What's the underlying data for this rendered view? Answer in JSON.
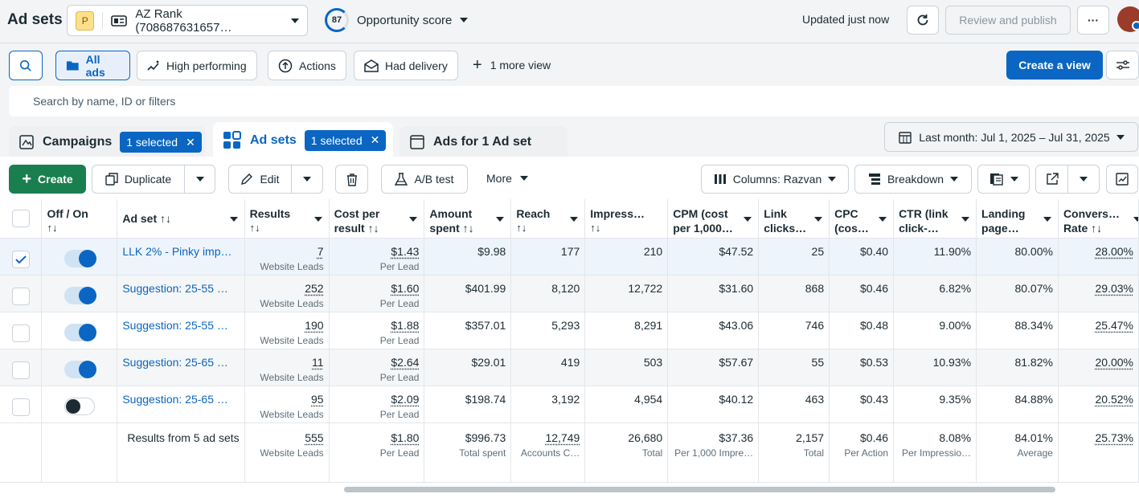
{
  "topbar": {
    "title": "Ad sets",
    "account_badge": "P",
    "account_name": "AZ Rank (708687631657…",
    "opportunity_value": "87",
    "opportunity_label": "Opportunity score",
    "updated": "Updated just now",
    "review_button": "Review and publish",
    "more_label": "···"
  },
  "views": {
    "items": [
      "All ads",
      "High performing",
      "Actions",
      "Had delivery"
    ],
    "more_view": "1 more view",
    "create_view": "Create a view"
  },
  "search": {
    "placeholder": "Search by name, ID or filters"
  },
  "tabs": {
    "campaigns": "Campaigns",
    "campaigns_badge": "1 selected",
    "adsets": "Ad sets",
    "adsets_badge": "1 selected",
    "ads": "Ads for 1 Ad set"
  },
  "daterange": "Last month: Jul 1, 2025 – Jul 31, 2025",
  "toolbar": {
    "create": "Create",
    "duplicate": "Duplicate",
    "edit": "Edit",
    "abtest": "A/B test",
    "more": "More",
    "columns": "Columns: Razvan",
    "breakdown": "Breakdown"
  },
  "table": {
    "headers": [
      {
        "l1": "Off / On",
        "l2": "↑↓"
      },
      {
        "l1": "Ad set ↑↓",
        "l2": ""
      },
      {
        "l1": "Results",
        "l2": "↑↓"
      },
      {
        "l1": "Cost per",
        "l2": "result ↑↓"
      },
      {
        "l1": "Amount",
        "l2": "spent ↑↓"
      },
      {
        "l1": "Reach",
        "l2": "↑↓"
      },
      {
        "l1": "Impress…",
        "l2": "↑↓"
      },
      {
        "l1": "CPM (cost",
        "l2": "per 1,000…"
      },
      {
        "l1": "Link",
        "l2": "clicks…"
      },
      {
        "l1": "CPC",
        "l2": "(cos…"
      },
      {
        "l1": "CTR (link",
        "l2": "click-…"
      },
      {
        "l1": "Landing",
        "l2": "page…"
      },
      {
        "l1": "Convers…",
        "l2": "Rate ↑↓"
      }
    ],
    "rows": [
      {
        "checked": true,
        "on": true,
        "name": "LLK 2% - Pinky imp…",
        "results": "7",
        "results_sub": "Website Leads",
        "cpr": "$1.43",
        "cpr_sub": "Per Lead",
        "spent": "$9.98",
        "reach": "177",
        "impr": "210",
        "cpm": "$47.52",
        "clicks": "25",
        "cpc": "$0.40",
        "ctr": "11.90%",
        "landing": "80.00%",
        "conv": "28.00%"
      },
      {
        "checked": false,
        "on": true,
        "name": "Suggestion: 25-55 …",
        "results": "252",
        "results_sub": "Website Leads",
        "cpr": "$1.60",
        "cpr_sub": "Per Lead",
        "spent": "$401.99",
        "reach": "8,120",
        "impr": "12,722",
        "cpm": "$31.60",
        "clicks": "868",
        "cpc": "$0.46",
        "ctr": "6.82%",
        "landing": "80.07%",
        "conv": "29.03%"
      },
      {
        "checked": false,
        "on": true,
        "name": "Suggestion: 25-55 …",
        "results": "190",
        "results_sub": "Website Leads",
        "cpr": "$1.88",
        "cpr_sub": "Per Lead",
        "spent": "$357.01",
        "reach": "5,293",
        "impr": "8,291",
        "cpm": "$43.06",
        "clicks": "746",
        "cpc": "$0.48",
        "ctr": "9.00%",
        "landing": "88.34%",
        "conv": "25.47%"
      },
      {
        "checked": false,
        "on": true,
        "name": "Suggestion: 25-65 …",
        "results": "11",
        "results_sub": "Website Leads",
        "cpr": "$2.64",
        "cpr_sub": "Per Lead",
        "spent": "$29.01",
        "reach": "419",
        "impr": "503",
        "cpm": "$57.67",
        "clicks": "55",
        "cpc": "$0.53",
        "ctr": "10.93%",
        "landing": "81.82%",
        "conv": "20.00%"
      },
      {
        "checked": false,
        "on": false,
        "name": "Suggestion: 25-65 …",
        "results": "95",
        "results_sub": "Website Leads",
        "cpr": "$2.09",
        "cpr_sub": "Per Lead",
        "spent": "$198.74",
        "reach": "3,192",
        "impr": "4,954",
        "cpm": "$40.12",
        "clicks": "463",
        "cpc": "$0.43",
        "ctr": "9.35%",
        "landing": "84.88%",
        "conv": "20.52%"
      }
    ],
    "totals": {
      "label": "Results from 5 ad sets",
      "results": "555",
      "results_sub": "Website Leads",
      "cpr": "$1.80",
      "cpr_sub": "Per Lead",
      "spent": "$996.73",
      "spent_sub": "Total spent",
      "reach": "12,749",
      "reach_sub": "Accounts C…",
      "impr": "26,680",
      "impr_sub": "Total",
      "cpm": "$37.36",
      "cpm_sub": "Per 1,000 Impre…",
      "clicks": "2,157",
      "clicks_sub": "Total",
      "cpc": "$0.46",
      "cpc_sub": "Per Action",
      "ctr": "8.08%",
      "ctr_sub": "Per Impressio…",
      "landing": "84.01%",
      "landing_sub": "Average",
      "conv": "25.73%"
    }
  }
}
